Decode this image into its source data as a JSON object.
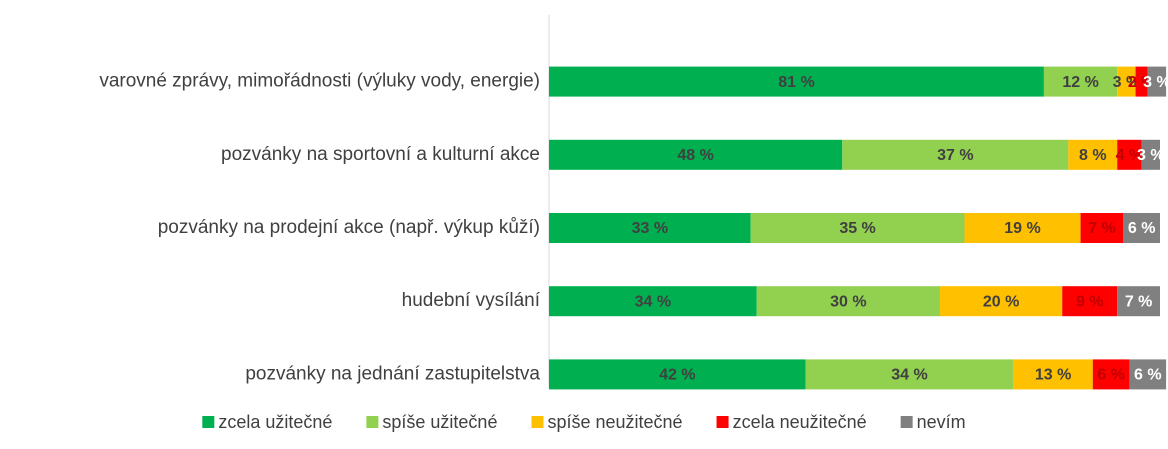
{
  "chart_data": {
    "type": "stacked-bar-horizontal",
    "categories": [
      "varovné zprávy, mimořádnosti (výluky vody, energie)",
      "pozvánky na sportovní a kulturní akce",
      "pozvánky na prodejní akce (např. výkup kůží)",
      "hudební vysílání",
      "pozvánky na jednání zastupitelstva"
    ],
    "xlim": [
      0,
      100
    ],
    "series": [
      {
        "name": "zcela užitečné",
        "color": "#00b050",
        "values": [
          81,
          48,
          33,
          34,
          42
        ],
        "value_labels": [
          "81 %",
          "48 %",
          "33 %",
          "34 %",
          "42 %"
        ]
      },
      {
        "name": "spíše užitečné",
        "color": "#92d050",
        "values": [
          12,
          37,
          35,
          30,
          34
        ],
        "value_labels": [
          "12 %",
          "37 %",
          "35 %",
          "30 %",
          "34 %"
        ]
      },
      {
        "name": "spíše neužitečné",
        "color": "#ffc000",
        "values": [
          3,
          8,
          19,
          20,
          13
        ],
        "value_labels": [
          "3 %",
          "8 %",
          "19 %",
          "20 %",
          "13 %"
        ]
      },
      {
        "name": "zcela neužitečné",
        "color": "#ff0000",
        "values": [
          2,
          4,
          7,
          9,
          6
        ],
        "value_labels": [
          "2 %",
          "4 %",
          "7 %",
          "9 %",
          "6 %"
        ]
      },
      {
        "name": "nevím",
        "color": "#808080",
        "values": [
          3,
          3,
          6,
          7,
          6
        ],
        "value_labels": [
          "3 %",
          "3 %",
          "6 %",
          "7 %",
          "6 %"
        ]
      }
    ],
    "legend": "bottom"
  }
}
